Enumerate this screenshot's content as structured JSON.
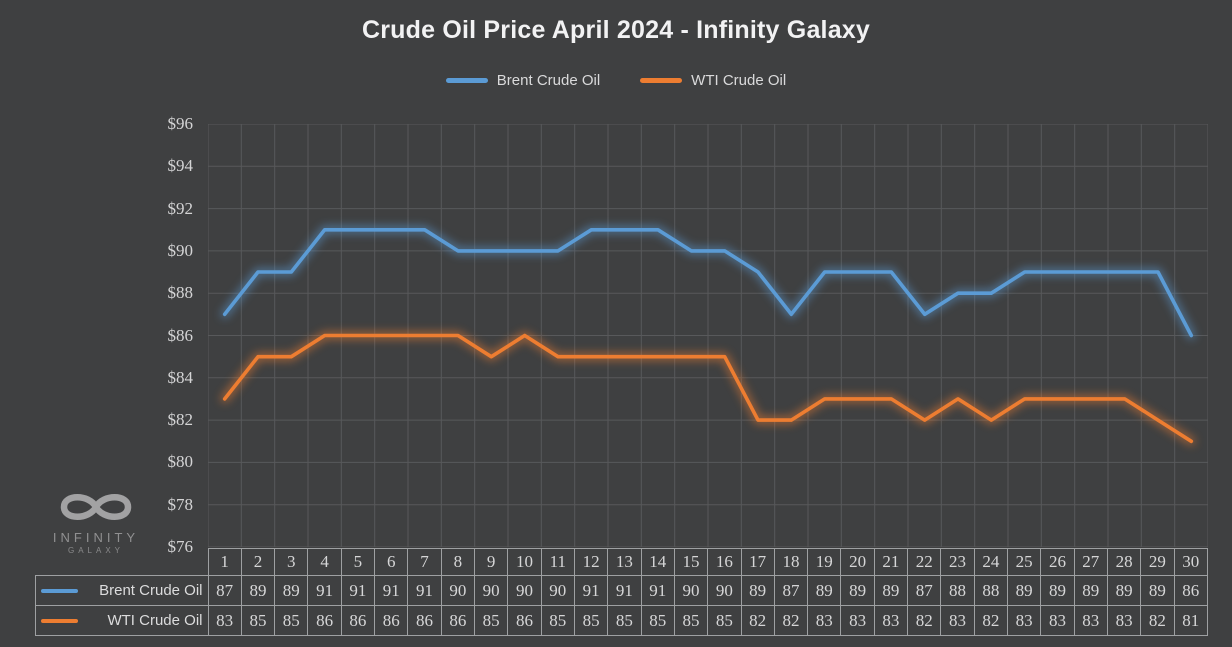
{
  "title": "Crude Oil Price April 2024 - Infinity Galaxy",
  "logo": {
    "brand_line1": "INFINITY",
    "brand_line2": "GALAXY"
  },
  "colors": {
    "background": "#3F4041",
    "grid": "#58595B",
    "brent": "#5B9BD5",
    "wti": "#ED7D31",
    "table_border": "#9EA0A2",
    "text": "#D6D6D7"
  },
  "chart_data": {
    "type": "line",
    "title": "Crude Oil Price April 2024 - Infinity Galaxy",
    "categories": [
      1,
      2,
      3,
      4,
      5,
      6,
      7,
      8,
      9,
      10,
      11,
      12,
      13,
      14,
      15,
      16,
      17,
      18,
      19,
      20,
      21,
      22,
      23,
      24,
      25,
      26,
      27,
      28,
      29,
      30
    ],
    "series": [
      {
        "name": "Brent Crude Oil",
        "color": "#5B9BD5",
        "values": [
          87,
          89,
          89,
          91,
          91,
          91,
          91,
          90,
          90,
          90,
          90,
          91,
          91,
          91,
          90,
          90,
          89,
          87,
          89,
          89,
          89,
          87,
          88,
          88,
          89,
          89,
          89,
          89,
          89,
          86
        ]
      },
      {
        "name": "WTI Crude Oil",
        "color": "#ED7D31",
        "values": [
          83,
          85,
          85,
          86,
          86,
          86,
          86,
          86,
          85,
          86,
          85,
          85,
          85,
          85,
          85,
          85,
          82,
          82,
          83,
          83,
          83,
          82,
          83,
          82,
          83,
          83,
          83,
          83,
          82,
          81
        ]
      }
    ],
    "xlabel": "",
    "ylabel": "",
    "ylim": [
      76,
      96
    ],
    "yticks": [
      "$96",
      "$94",
      "$92",
      "$90",
      "$88",
      "$86",
      "$84",
      "$82",
      "$80",
      "$78",
      "$76"
    ],
    "ytick_prefix": "$",
    "grid": true,
    "legend_position": "top",
    "data_table_shown": true
  }
}
